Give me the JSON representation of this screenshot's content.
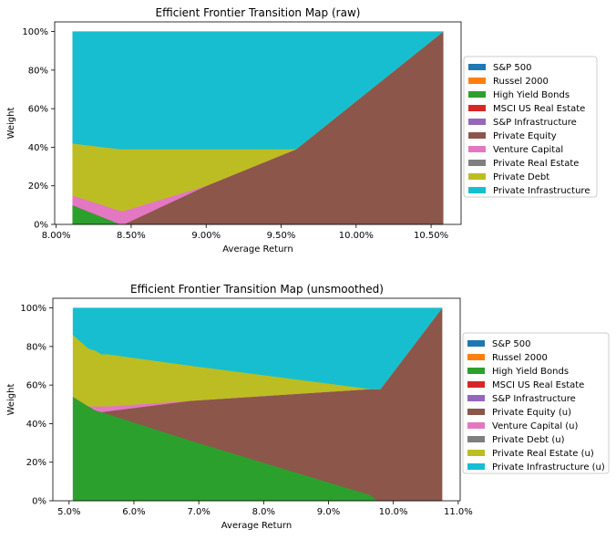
{
  "chart_data": [
    {
      "type": "area",
      "stacked": true,
      "title": "Efficient Frontier Transition Map (raw)",
      "xlabel": "Average Return",
      "ylabel": "Weight",
      "xlim": [
        0.0799,
        0.107
      ],
      "ylim": [
        0,
        1.05
      ],
      "xticks": [
        0.08,
        0.085,
        0.09,
        0.095,
        0.1,
        0.105
      ],
      "xtick_labels": [
        "8.00%",
        "8.50%",
        "9.00%",
        "9.50%",
        "10.00%",
        "10.50%"
      ],
      "yticks": [
        0,
        0.2,
        0.4,
        0.6,
        0.8,
        1.0
      ],
      "ytick_labels": [
        "0%",
        "20%",
        "40%",
        "60%",
        "80%",
        "100%"
      ],
      "legend_position": "right",
      "x": [
        0.0811,
        0.0843,
        0.0845,
        0.09,
        0.096,
        0.1058
      ],
      "series": [
        {
          "name": "S&P 500",
          "color": "#1f77b4",
          "values": [
            0,
            0,
            0,
            0,
            0,
            0
          ]
        },
        {
          "name": "Russel 2000",
          "color": "#ff7f0e",
          "values": [
            0,
            0,
            0,
            0,
            0,
            0
          ]
        },
        {
          "name": "High Yield Bonds",
          "color": "#2ca02c",
          "values": [
            0.1,
            0.0,
            0.0,
            0.0,
            0.0,
            0.0
          ]
        },
        {
          "name": "MSCI US Real Estate",
          "color": "#d62728",
          "values": [
            0,
            0,
            0,
            0,
            0,
            0
          ]
        },
        {
          "name": "S&P Infrastructure",
          "color": "#9467bd",
          "values": [
            0,
            0,
            0,
            0,
            0,
            0
          ]
        },
        {
          "name": "Private Equity",
          "color": "#8c564b",
          "values": [
            0.0,
            0.0,
            0.0,
            0.2,
            0.39,
            1.0
          ]
        },
        {
          "name": "Venture Capital",
          "color": "#e377c2",
          "values": [
            0.05,
            0.07,
            0.07,
            0.0,
            0.0,
            0.0
          ]
        },
        {
          "name": "Private Real Estate",
          "color": "#7f7f7f",
          "values": [
            0,
            0,
            0,
            0,
            0,
            0
          ]
        },
        {
          "name": "Private Debt",
          "color": "#bcbd22",
          "values": [
            0.27,
            0.32,
            0.32,
            0.19,
            0.0,
            0.0
          ]
        },
        {
          "name": "Private Infrastructure",
          "color": "#17becf",
          "values": [
            0.58,
            0.61,
            0.61,
            0.61,
            0.61,
            0.0
          ]
        }
      ]
    },
    {
      "type": "area",
      "stacked": true,
      "title": "Efficient Frontier Transition Map (unsmoothed)",
      "xlabel": "Average Return",
      "ylabel": "Weight",
      "xlim": [
        0.0475,
        0.1103
      ],
      "ylim": [
        0,
        1.05
      ],
      "xticks": [
        0.05,
        0.06,
        0.07,
        0.08,
        0.09,
        0.1,
        0.11
      ],
      "xtick_labels": [
        "5.0%",
        "6.0%",
        "7.0%",
        "8.0%",
        "9.0%",
        "10.0%",
        "11.0%"
      ],
      "yticks": [
        0,
        0.2,
        0.4,
        0.6,
        0.8,
        1.0
      ],
      "ytick_labels": [
        "0%",
        "20%",
        "40%",
        "60%",
        "80%",
        "100%"
      ],
      "legend_position": "right",
      "x": [
        0.0506,
        0.053,
        0.054,
        0.055,
        0.056,
        0.069,
        0.0965,
        0.0975,
        0.098,
        0.1075
      ],
      "series": [
        {
          "name": "S&P 500",
          "color": "#1f77b4",
          "values": [
            0,
            0,
            0,
            0,
            0,
            0,
            0,
            0,
            0,
            0
          ]
        },
        {
          "name": "Russel 2000",
          "color": "#ff7f0e",
          "values": [
            0,
            0,
            0,
            0,
            0,
            0,
            0,
            0,
            0,
            0
          ]
        },
        {
          "name": "High Yield Bonds",
          "color": "#2ca02c",
          "values": [
            0.54,
            0.49,
            0.47,
            0.46,
            0.45,
            0.31,
            0.03,
            0.0,
            0.0,
            0.0
          ]
        },
        {
          "name": "MSCI US Real Estate",
          "color": "#d62728",
          "values": [
            0,
            0,
            0,
            0,
            0,
            0,
            0,
            0,
            0,
            0
          ]
        },
        {
          "name": "S&P Infrastructure",
          "color": "#9467bd",
          "values": [
            0,
            0,
            0,
            0,
            0,
            0,
            0,
            0,
            0,
            0
          ]
        },
        {
          "name": "Private Equity (u)",
          "color": "#8c564b",
          "values": [
            0.0,
            0.0,
            0.0,
            0.0,
            0.015,
            0.21,
            0.55,
            0.58,
            0.58,
            1.0
          ]
        },
        {
          "name": "Venture Capital (u)",
          "color": "#e377c2",
          "values": [
            0.0,
            0.0,
            0.02,
            0.03,
            0.025,
            0.0,
            0.0,
            0.0,
            0.0,
            0.0
          ]
        },
        {
          "name": "Private Debt (u)",
          "color": "#7f7f7f",
          "values": [
            0,
            0,
            0,
            0,
            0,
            0,
            0,
            0,
            0,
            0
          ]
        },
        {
          "name": "Private Real Estate (u)",
          "color": "#bcbd22",
          "values": [
            0.32,
            0.3,
            0.29,
            0.27,
            0.27,
            0.18,
            0.0,
            0.0,
            0.0,
            0.0
          ]
        },
        {
          "name": "Private Infrastructure (u)",
          "color": "#17becf",
          "values": [
            0.14,
            0.21,
            0.22,
            0.24,
            0.24,
            0.3,
            0.42,
            0.42,
            0.42,
            0.0
          ]
        }
      ]
    }
  ]
}
